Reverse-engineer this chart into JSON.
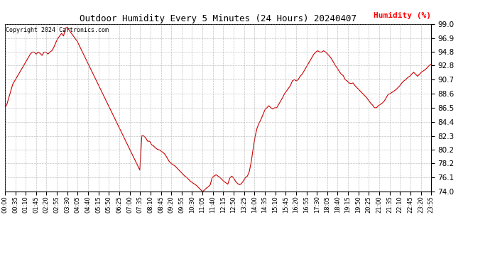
{
  "title": "Outdoor Humidity Every 5 Minutes (24 Hours) 20240407",
  "ylabel": "Humidity (%)",
  "copyright_text": "Copyright 2024 Cartronics.com",
  "line_color": "#cc0000",
  "bg_color": "#ffffff",
  "grid_color": "#999999",
  "ylim": [
    74.0,
    99.0
  ],
  "yticks": [
    74.0,
    76.1,
    78.2,
    80.2,
    82.3,
    84.4,
    86.5,
    88.6,
    90.7,
    92.8,
    94.8,
    96.9,
    99.0
  ],
  "humidity_values": [
    86.5,
    87.0,
    88.0,
    89.0,
    90.0,
    90.5,
    91.0,
    91.5,
    92.0,
    92.5,
    93.0,
    93.5,
    94.0,
    94.5,
    94.8,
    94.8,
    94.5,
    94.8,
    94.6,
    94.3,
    94.8,
    94.8,
    94.5,
    94.8,
    95.0,
    95.5,
    96.2,
    96.8,
    97.2,
    97.6,
    97.2,
    98.4,
    98.5,
    98.0,
    97.6,
    97.2,
    96.8,
    96.4,
    95.8,
    95.2,
    94.6,
    94.0,
    93.4,
    92.8,
    92.2,
    91.6,
    91.0,
    90.4,
    89.8,
    89.2,
    88.6,
    88.0,
    87.4,
    86.8,
    86.2,
    85.6,
    85.0,
    84.4,
    83.8,
    83.2,
    82.6,
    82.0,
    81.4,
    80.8,
    80.2,
    79.6,
    79.0,
    78.4,
    77.8,
    77.2,
    82.3,
    82.3,
    82.0,
    81.5,
    81.5,
    81.0,
    80.8,
    80.5,
    80.3,
    80.2,
    80.0,
    79.8,
    79.5,
    79.0,
    78.5,
    78.2,
    78.0,
    77.8,
    77.5,
    77.2,
    76.9,
    76.6,
    76.3,
    76.1,
    75.8,
    75.5,
    75.3,
    75.1,
    74.9,
    74.6,
    74.3,
    74.0,
    74.2,
    74.5,
    74.7,
    75.0,
    76.1,
    76.3,
    76.5,
    76.3,
    76.1,
    75.8,
    75.5,
    75.3,
    75.1,
    76.0,
    76.3,
    76.0,
    75.5,
    75.2,
    75.0,
    75.2,
    75.6,
    76.1,
    76.3,
    77.0,
    78.5,
    80.5,
    82.3,
    83.5,
    84.2,
    84.8,
    85.5,
    86.2,
    86.5,
    86.8,
    86.5,
    86.3,
    86.5,
    86.5,
    87.0,
    87.5,
    88.0,
    88.6,
    89.0,
    89.4,
    89.8,
    90.5,
    90.7,
    90.5,
    90.7,
    91.2,
    91.5,
    92.0,
    92.5,
    93.0,
    93.5,
    94.0,
    94.5,
    94.8,
    95.0,
    94.8,
    94.8,
    95.0,
    94.8,
    94.5,
    94.2,
    93.8,
    93.3,
    92.8,
    92.4,
    91.9,
    91.5,
    91.3,
    90.7,
    90.5,
    90.2,
    90.1,
    90.2,
    89.8,
    89.5,
    89.2,
    88.9,
    88.6,
    88.3,
    88.0,
    87.6,
    87.2,
    86.9,
    86.5,
    86.5,
    86.8,
    87.0,
    87.2,
    87.5,
    88.0,
    88.5,
    88.6,
    88.8,
    89.0,
    89.2,
    89.5,
    89.8,
    90.2,
    90.5,
    90.7,
    91.0,
    91.2,
    91.5,
    91.8,
    91.5,
    91.2,
    91.5,
    91.8,
    92.0,
    92.2,
    92.5,
    92.8,
    93.0
  ],
  "xtick_labels": [
    "00:00",
    "00:35",
    "01:10",
    "01:45",
    "02:20",
    "02:55",
    "03:30",
    "04:05",
    "04:40",
    "05:15",
    "05:50",
    "06:25",
    "07:00",
    "07:35",
    "08:10",
    "08:45",
    "09:20",
    "09:55",
    "10:30",
    "11:05",
    "11:40",
    "12:15",
    "12:50",
    "13:25",
    "14:00",
    "14:35",
    "15:10",
    "15:45",
    "16:20",
    "16:55",
    "17:30",
    "18:05",
    "18:40",
    "19:15",
    "19:50",
    "20:25",
    "21:00",
    "21:35",
    "22:10",
    "22:45",
    "23:20",
    "23:55"
  ],
  "figwidth": 6.9,
  "figheight": 3.75,
  "dpi": 100
}
